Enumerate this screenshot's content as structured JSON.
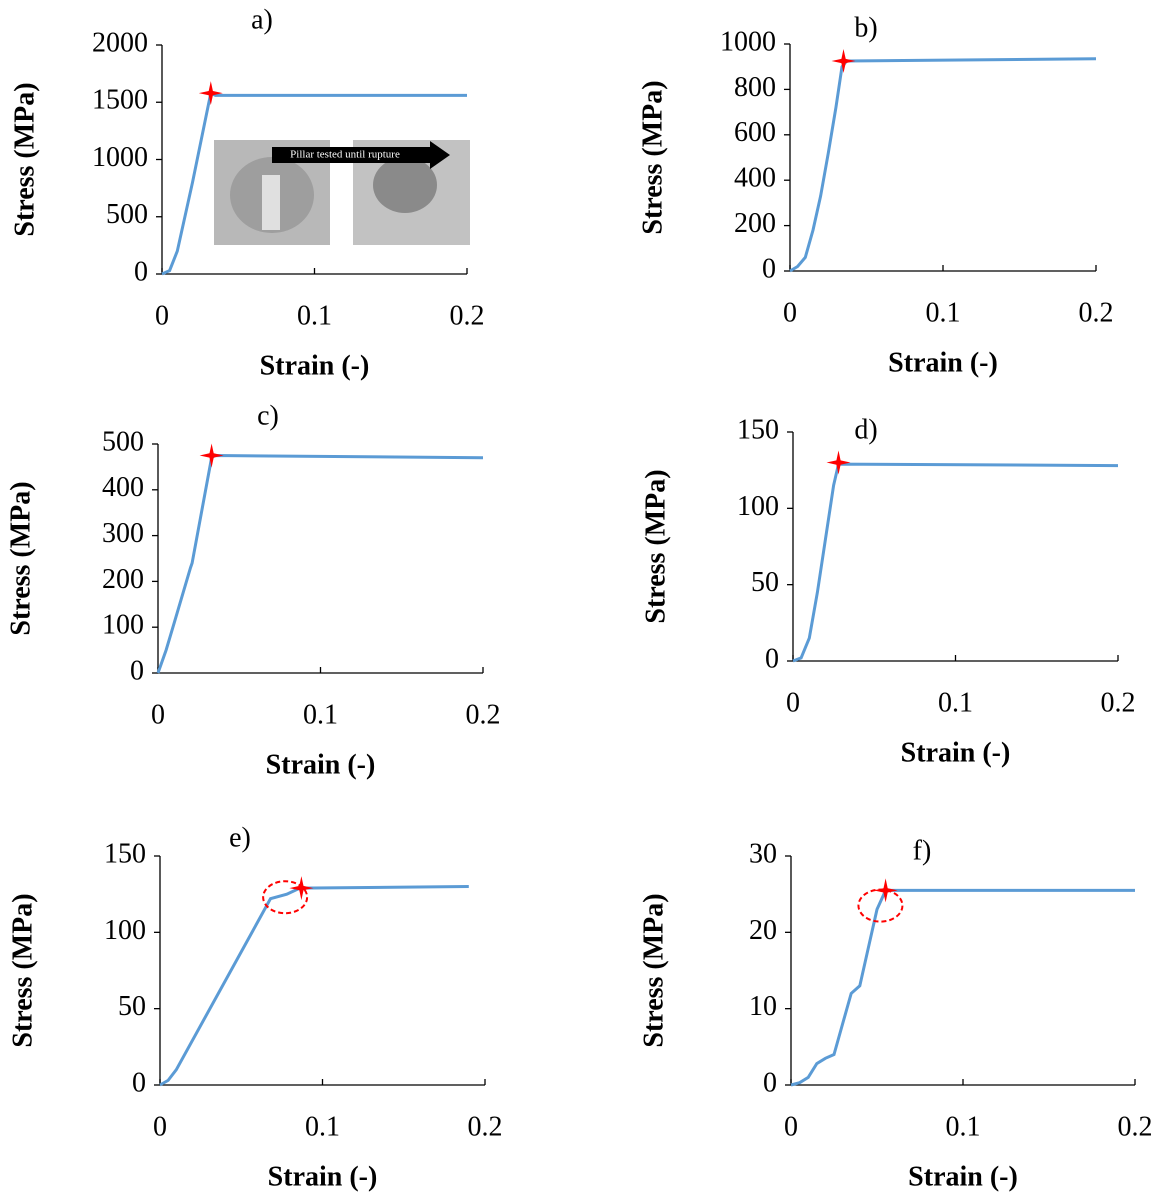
{
  "chart_data": [
    {
      "type": "line",
      "title": "a)",
      "xlabel": "Strain (-)",
      "ylabel": "Stress (MPa)",
      "color": "#5b9bd5",
      "x": [
        0,
        0.005,
        0.01,
        0.02,
        0.032,
        0.035,
        0.2
      ],
      "values": [
        0,
        30,
        200,
        800,
        1580,
        1560,
        1560
      ],
      "xlim": [
        0,
        0.2
      ],
      "ylim": [
        0,
        2000
      ],
      "xticks": [
        0,
        0.1,
        0.2
      ],
      "yticks": [
        0,
        500,
        1000,
        1500,
        2000
      ],
      "marker": {
        "x": 0.032,
        "y": 1580,
        "color": "#ff0000"
      },
      "inset_text": "Pillar tested until rupture"
    },
    {
      "type": "line",
      "title": "b)",
      "xlabel": "Strain (-)",
      "ylabel": "Stress (MPa)",
      "color": "#5b9bd5",
      "x": [
        0,
        0.005,
        0.01,
        0.015,
        0.02,
        0.025,
        0.03,
        0.034,
        0.037,
        0.2
      ],
      "values": [
        0,
        20,
        60,
        180,
        330,
        520,
        720,
        900,
        925,
        935
      ],
      "xlim": [
        0,
        0.2
      ],
      "ylim": [
        0,
        1000
      ],
      "xticks": [
        0,
        0.1,
        0.2
      ],
      "yticks": [
        0,
        200,
        400,
        600,
        800,
        1000
      ],
      "marker": {
        "x": 0.035,
        "y": 925,
        "color": "#ff0000"
      }
    },
    {
      "type": "line",
      "title": "c)",
      "xlabel": "Strain (-)",
      "ylabel": "Stress (MPa)",
      "color": "#5b9bd5",
      "x": [
        0,
        0.005,
        0.01,
        0.02,
        0.021,
        0.033,
        0.035,
        0.2
      ],
      "values": [
        0,
        50,
        110,
        230,
        240,
        470,
        475,
        470
      ],
      "xlim": [
        0,
        0.2
      ],
      "ylim": [
        0,
        500
      ],
      "xticks": [
        0,
        0.1,
        0.2
      ],
      "yticks": [
        0,
        100,
        200,
        300,
        400,
        500
      ],
      "marker": {
        "x": 0.033,
        "y": 475,
        "color": "#ff0000"
      }
    },
    {
      "type": "line",
      "title": "d)",
      "xlabel": "Strain (-)",
      "ylabel": "Stress (MPa)",
      "color": "#5b9bd5",
      "x": [
        0,
        0.005,
        0.01,
        0.015,
        0.02,
        0.025,
        0.028,
        0.2
      ],
      "values": [
        0,
        2,
        15,
        45,
        80,
        115,
        129,
        128
      ],
      "xlim": [
        0,
        0.2
      ],
      "ylim": [
        0,
        150
      ],
      "xticks": [
        0,
        0.1,
        0.2
      ],
      "yticks": [
        0,
        50,
        100,
        150
      ],
      "marker": {
        "x": 0.028,
        "y": 130,
        "color": "#ff0000"
      }
    },
    {
      "type": "line",
      "title": "e)",
      "xlabel": "Strain (-)",
      "ylabel": "Stress (MPa)",
      "color": "#5b9bd5",
      "x": [
        0,
        0.005,
        0.01,
        0.068,
        0.078,
        0.086,
        0.19
      ],
      "values": [
        0,
        3,
        10,
        122,
        125,
        129,
        130
      ],
      "xlim": [
        0,
        0.2
      ],
      "ylim": [
        0,
        150
      ],
      "xticks": [
        0,
        0.1,
        0.2
      ],
      "yticks": [
        0,
        50,
        100,
        150
      ],
      "marker": {
        "x": 0.087,
        "y": 129,
        "color": "#ff0000"
      },
      "highlight": {
        "x": 0.077,
        "y": 123,
        "color": "#ff0000"
      }
    },
    {
      "type": "line",
      "title": "f)",
      "xlabel": "Strain (-)",
      "ylabel": "Stress (MPa)",
      "color": "#5b9bd5",
      "x": [
        0,
        0.005,
        0.01,
        0.015,
        0.02,
        0.025,
        0.03,
        0.035,
        0.04,
        0.045,
        0.05,
        0.055,
        0.2
      ],
      "values": [
        0,
        0.3,
        1,
        2.8,
        3.5,
        4,
        8,
        12,
        13,
        18,
        23,
        25.5,
        25.5
      ],
      "xlim": [
        0,
        0.2
      ],
      "ylim": [
        0,
        30
      ],
      "xticks": [
        0,
        0.1,
        0.2
      ],
      "yticks": [
        0,
        10,
        20,
        30
      ],
      "marker": {
        "x": 0.055,
        "y": 25.5,
        "color": "#ff0000"
      },
      "highlight": {
        "x": 0.052,
        "y": 23.5,
        "color": "#ff0000"
      }
    }
  ]
}
